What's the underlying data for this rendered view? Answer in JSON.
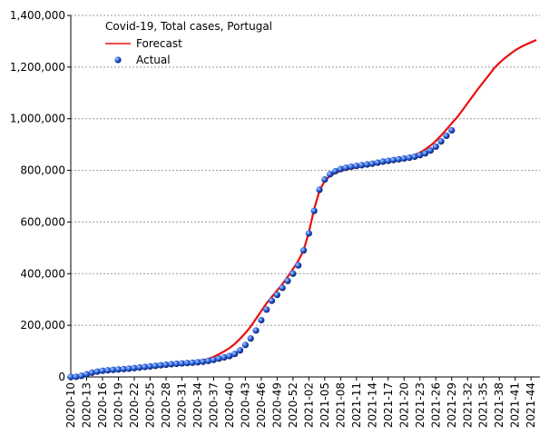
{
  "chart_data": {
    "type": "line",
    "title": "Covid-19, Total cases, Portugal",
    "categories": [
      "2020-10",
      null,
      null,
      "2020-13",
      null,
      null,
      "2020-16",
      null,
      null,
      "2020-19",
      null,
      null,
      "2020-22",
      null,
      null,
      "2020-25",
      null,
      null,
      "2020-28",
      null,
      null,
      "2020-31",
      null,
      null,
      "2020-34",
      null,
      null,
      "2020-37",
      null,
      null,
      "2020-40",
      null,
      null,
      "2020-43",
      null,
      null,
      "2020-46",
      null,
      null,
      "2020-49",
      null,
      null,
      "2020-52",
      null,
      null,
      "2021-02",
      null,
      null,
      "2021-05",
      null,
      null,
      "2021-08",
      null,
      null,
      "2021-11",
      null,
      null,
      "2021-14",
      null,
      null,
      "2021-17",
      null,
      null,
      "2021-20",
      null,
      null,
      "2021-23",
      null,
      null,
      "2021-26",
      null,
      null,
      "2021-29",
      null,
      null,
      "2021-32",
      null,
      null,
      "2021-35",
      null,
      null,
      "2021-38",
      null,
      null,
      "2021-41",
      null,
      null,
      "2021-44",
      null
    ],
    "series": [
      {
        "name": "Forecast",
        "color": "#e8110f",
        "mode": "line",
        "values": [
          0,
          2000,
          6000,
          11000,
          15000,
          18000,
          21000,
          23000,
          25000,
          27000,
          29000,
          31000,
          33500,
          36000,
          38500,
          41000,
          43500,
          46000,
          48500,
          51000,
          53000,
          55000,
          57000,
          59000,
          62000,
          65000,
          70000,
          78000,
          88000,
          99000,
          112000,
          128000,
          148000,
          170000,
          195000,
          225000,
          255000,
          285000,
          310000,
          335000,
          360000,
          388000,
          418000,
          450000,
          490000,
          560000,
          650000,
          720000,
          760000,
          778000,
          790000,
          798000,
          803000,
          808000,
          812000,
          816000,
          820000,
          824000,
          828000,
          832000,
          836000,
          840000,
          844000,
          848000,
          853000,
          860000,
          869000,
          881000,
          896000,
          914000,
          935000,
          958000,
          982000,
          1005000,
          1032000,
          1060000,
          1088000,
          1116000,
          1142000,
          1168000,
          1195000,
          1216000,
          1234000,
          1250000,
          1265000,
          1277000,
          1287000,
          1296000,
          1305000
        ]
      },
      {
        "name": "Actual",
        "color": "#1f4fd0",
        "mode": "markers",
        "values": [
          100,
          650,
          4300,
          10500,
          16600,
          20900,
          24000,
          25700,
          27600,
          29000,
          30500,
          32200,
          34300,
          36500,
          38800,
          40800,
          43000,
          45300,
          47400,
          49400,
          51000,
          52500,
          53800,
          55200,
          57000,
          59000,
          62000,
          66000,
          71000,
          76000,
          81000,
          89000,
          103000,
          124000,
          149000,
          180000,
          220000,
          261000,
          295000,
          318000,
          345000,
          372000,
          400000,
          432000,
          490000,
          556000,
          643000,
          725000,
          765000,
          785000,
          797000,
          805000,
          810000,
          814000,
          817000,
          820000,
          823000,
          826000,
          830000,
          834000,
          837000,
          840000,
          843000,
          846000,
          849000,
          853000,
          859000,
          866000,
          877000,
          892000,
          912000,
          934000,
          955000,
          null,
          null,
          null,
          null,
          null,
          null,
          null,
          null,
          null,
          null,
          null,
          null,
          null,
          null,
          null,
          null
        ]
      }
    ],
    "ylim": [
      0,
      1400000
    ],
    "yticks": [
      0,
      {
        "value": 200000,
        "label": "200,000"
      },
      {
        "value": 400000,
        "label": "400,000"
      },
      {
        "value": 600000,
        "label": "600,000"
      },
      {
        "value": 800000,
        "label": "800,000"
      },
      {
        "value": 1000000,
        "label": "1,000,000"
      },
      {
        "value": 1200000,
        "label": "1,200,000"
      },
      {
        "value": 1400000,
        "label": "1,400,000"
      }
    ],
    "grid": true,
    "legend": "upper-left"
  }
}
